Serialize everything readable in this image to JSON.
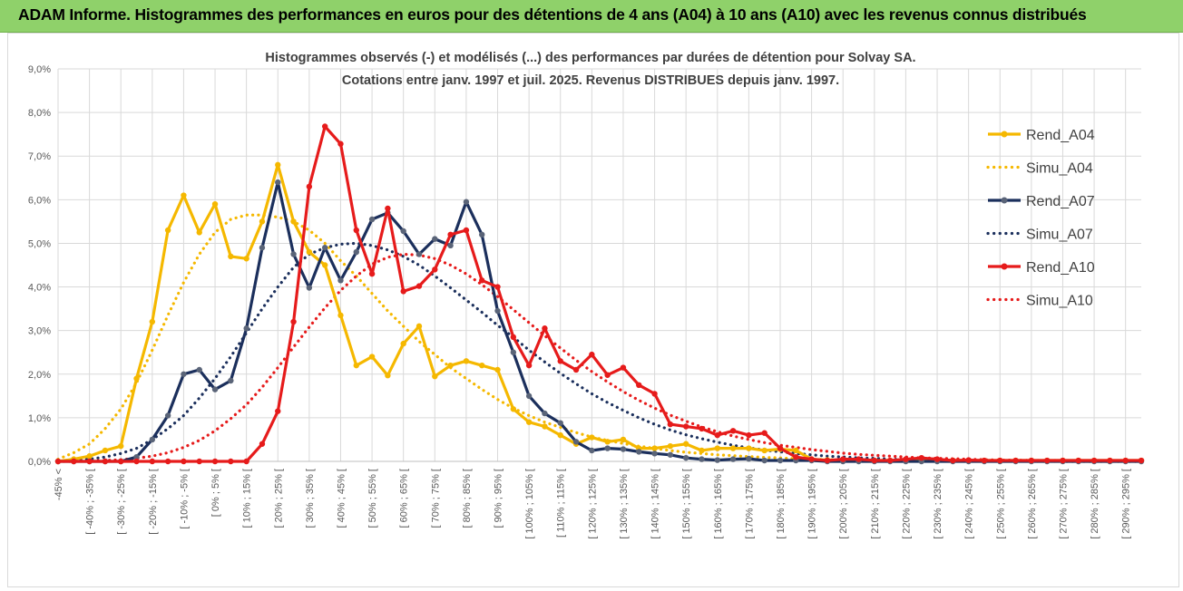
{
  "banner": {
    "title": "ADAM Informe. Histogrammes des performances en euros pour des détentions de 4 ans (A04) à 10 ans (A10) avec les revenus connus distribués"
  },
  "colors": {
    "a04": "#f5b800",
    "a07": "#1b2f5c",
    "a07_marker": "#5a6478",
    "a10": "#e61b1b",
    "grid": "#d9d9d9",
    "banner": "#8fd16a"
  },
  "chart_data": {
    "type": "line",
    "title": "Histogrammes observés (-) et modélisés (...) des performances par durées de détention pour Solvay SA.",
    "subtitle": "Cotations entre janv. 1997 et juil. 2025. Revenus DISTRIBUES depuis janv. 1997.",
    "xlabel": "",
    "ylabel": "",
    "ylim": [
      0,
      9
    ],
    "yticks": [
      "0,0%",
      "1,0%",
      "2,0%",
      "3,0%",
      "4,0%",
      "5,0%",
      "6,0%",
      "7,0%",
      "8,0%",
      "9,0%"
    ],
    "grid": true,
    "legend_position": "right",
    "categories": [
      "-45% <",
      "[ -45% ; -40% [",
      "[ -40% ; -35% [",
      "[ -35% ; -30% [",
      "[ -30% ; -25% [",
      "[ -25% ; -20% [",
      "[ -20% ; -15% [",
      "[ -15% ; -10% [",
      "[ -10% ; -5% [",
      "[ -5% ; 0% [",
      "[ 0% ; 5% [",
      "[ 5% ; 10% [",
      "[ 10% ; 15% [",
      "[ 15% ; 20% [",
      "[ 20% ; 25% [",
      "[ 25% ; 30% [",
      "[ 30% ; 35% [",
      "[ 35% ; 40% [",
      "[ 40% ; 45% [",
      "[ 45% ; 50% [",
      "[ 50% ; 55% [",
      "[ 55% ; 60% [",
      "[ 60% ; 65% [",
      "[ 65% ; 70% [",
      "[ 70% ; 75% [",
      "[ 75% ; 80% [",
      "[ 80% ; 85% [",
      "[ 85% ; 90% [",
      "[ 90% ; 95% [",
      "[ 95% ; 100% [",
      "[ 100% ; 105% [",
      "[ 105% ; 110% [",
      "[ 110% ; 115% [",
      "[ 115% ; 120% [",
      "[ 120% ; 125% [",
      "[ 125% ; 130% [",
      "[ 130% ; 135% [",
      "[ 135% ; 140% [",
      "[ 140% ; 145% [",
      "[ 145% ; 150% [",
      "[ 150% ; 155% [",
      "[ 155% ; 160% [",
      "[ 160% ; 165% [",
      "[ 165% ; 170% [",
      "[ 170% ; 175% [",
      "[ 175% ; 180% [",
      "[ 180% ; 185% [",
      "[ 185% ; 190% [",
      "[ 190% ; 195% [",
      "[ 195% ; 200% [",
      "[ 200% ; 205% [",
      "[ 205% ; 210% [",
      "[ 210% ; 215% [",
      "[ 215% ; 220% [",
      "[ 220% ; 225% [",
      "[ 225% ; 230% [",
      "[ 230% ; 235% [",
      "[ 235% ; 240% [",
      "[ 240% ; 245% [",
      "[ 245% ; 250% [",
      "[ 250% ; 255% [",
      "[ 255% ; 260% [",
      "[ 260% ; 265% [",
      "[ 265% ; 270% [",
      "[ 270% ; 275% [",
      "[ 275% ; 280% [",
      "[ 280% ; 285% [",
      "[ 285% ; 290% [",
      "[ 290% ; 295% [",
      "[ 295% ; 300% ["
    ],
    "tick_labels": [
      "-45% <",
      "",
      "[ -40% ; -35% [",
      "",
      "[ -30% ; -25% [",
      "",
      "[ -20% ; -15% [",
      "",
      "[ -10% ; -5% [",
      "",
      "[ 0% ; 5% [",
      "",
      "[ 10% ; 15% [",
      "",
      "[ 20% ; 25% [",
      "",
      "[ 30% ; 35% [",
      "",
      "[ 40% ; 45% [",
      "",
      "[ 50% ; 55% [",
      "",
      "[ 60% ; 65% [",
      "",
      "[ 70% ; 75% [",
      "",
      "[ 80% ; 85% [",
      "",
      "[ 90% ; 95% [",
      "",
      "[ 100% ; 105% [",
      "",
      "[ 110% ; 115% [",
      "",
      "[ 120% ; 125% [",
      "",
      "[ 130% ; 135% [",
      "",
      "[ 140% ; 145% [",
      "",
      "[ 150% ; 155% [",
      "",
      "[ 160% ; 165% [",
      "",
      "[ 170% ; 175% [",
      "",
      "[ 180% ; 185% [",
      "",
      "[ 190% ; 195% [",
      "",
      "[ 200% ; 205% [",
      "",
      "[ 210% ; 215% [",
      "",
      "[ 220% ; 225% [",
      "",
      "[ 230% ; 235% [",
      "",
      "[ 240% ; 245% [",
      "",
      "[ 250% ; 255% [",
      "",
      "[ 260% ; 265% [",
      "",
      "[ 270% ; 275% [",
      "",
      "[ 280% ; 285% [",
      "",
      "[ 290% ; 295% [",
      ""
    ],
    "series": [
      {
        "name": "Rend_A04",
        "style": "solid",
        "color": "#f5b800",
        "values": [
          0,
          0.05,
          0.12,
          0.25,
          0.35,
          1.9,
          3.2,
          5.3,
          6.1,
          5.25,
          5.9,
          4.7,
          4.65,
          5.5,
          6.8,
          5.5,
          4.8,
          4.5,
          3.35,
          2.2,
          2.4,
          1.97,
          2.7,
          3.1,
          1.95,
          2.2,
          2.3,
          2.2,
          2.1,
          1.2,
          0.9,
          0.8,
          0.6,
          0.4,
          0.55,
          0.45,
          0.5,
          0.3,
          0.3,
          0.35,
          0.4,
          0.25,
          0.3,
          0.3,
          0.3,
          0.25,
          0.28,
          0.25,
          0.05,
          0.03,
          0.02,
          0.02,
          0.02,
          0.02,
          0.02,
          0.02,
          0.02,
          0.02,
          0.02,
          0.02,
          0.02,
          0.02,
          0.02,
          0.02,
          0.02,
          0.02,
          0.02,
          0.02,
          0.02,
          0.02
        ]
      },
      {
        "name": "Simu_A04",
        "style": "dotted",
        "color": "#f5b800",
        "values": [
          0.05,
          0.2,
          0.4,
          0.75,
          1.2,
          1.8,
          2.55,
          3.35,
          4.1,
          4.75,
          5.25,
          5.55,
          5.65,
          5.65,
          5.6,
          5.5,
          5.3,
          5.0,
          4.6,
          4.25,
          3.85,
          3.45,
          3.1,
          2.75,
          2.45,
          2.15,
          1.9,
          1.65,
          1.42,
          1.22,
          1.05,
          0.9,
          0.78,
          0.66,
          0.56,
          0.48,
          0.41,
          0.35,
          0.3,
          0.25,
          0.21,
          0.18,
          0.15,
          0.13,
          0.11,
          0.09,
          0.08,
          0.06,
          0.05,
          0.04,
          0.04,
          0.03,
          0.03,
          0.02,
          0.02,
          0.02,
          0.01,
          0.01,
          0.01,
          0.01,
          0.01,
          0.01,
          0,
          0,
          0,
          0,
          0,
          0,
          0,
          0
        ]
      },
      {
        "name": "Rend_A07",
        "style": "solid",
        "color": "#1b2f5c",
        "values": [
          0,
          0,
          0,
          0,
          0,
          0.1,
          0.5,
          1.05,
          2.0,
          2.1,
          1.65,
          1.85,
          3.05,
          4.9,
          6.4,
          4.75,
          3.98,
          4.9,
          4.15,
          4.8,
          5.55,
          5.7,
          5.28,
          4.75,
          5.1,
          4.95,
          5.95,
          5.2,
          3.45,
          2.5,
          1.5,
          1.1,
          0.88,
          0.45,
          0.25,
          0.3,
          0.28,
          0.22,
          0.18,
          0.15,
          0.08,
          0.05,
          0.03,
          0.05,
          0.06,
          0.02,
          0.02,
          0.02,
          0.02,
          0,
          0,
          0,
          0,
          0,
          0,
          0,
          0,
          0,
          0,
          0,
          0,
          0,
          0,
          0,
          0,
          0,
          0,
          0,
          0,
          0
        ]
      },
      {
        "name": "Simu_A07",
        "style": "dotted",
        "color": "#1b2f5c",
        "values": [
          0,
          0.02,
          0.05,
          0.1,
          0.18,
          0.3,
          0.5,
          0.75,
          1.05,
          1.45,
          1.9,
          2.4,
          2.95,
          3.5,
          4.0,
          4.45,
          4.75,
          4.9,
          4.98,
          5.0,
          4.95,
          4.85,
          4.7,
          4.5,
          4.25,
          3.98,
          3.7,
          3.42,
          3.12,
          2.85,
          2.55,
          2.28,
          2.02,
          1.78,
          1.55,
          1.35,
          1.17,
          1.0,
          0.85,
          0.72,
          0.61,
          0.52,
          0.44,
          0.37,
          0.31,
          0.26,
          0.22,
          0.18,
          0.15,
          0.12,
          0.1,
          0.08,
          0.07,
          0.05,
          0.04,
          0.04,
          0.03,
          0.02,
          0.02,
          0.02,
          0.01,
          0.01,
          0.01,
          0.01,
          0,
          0,
          0,
          0,
          0,
          0
        ]
      },
      {
        "name": "Rend_A10",
        "style": "solid",
        "color": "#e61b1b",
        "values": [
          0,
          0,
          0,
          0,
          0,
          0,
          0,
          0,
          0,
          0,
          0,
          0,
          0,
          0.4,
          1.15,
          3.2,
          6.3,
          7.68,
          7.28,
          5.3,
          4.3,
          5.8,
          3.9,
          4.02,
          4.4,
          5.2,
          5.3,
          4.15,
          4.0,
          2.85,
          2.2,
          3.05,
          2.3,
          2.1,
          2.45,
          1.98,
          2.15,
          1.75,
          1.55,
          0.85,
          0.8,
          0.75,
          0.6,
          0.7,
          0.6,
          0.65,
          0.3,
          0.1,
          0.05,
          0.02,
          0.05,
          0.05,
          0.02,
          0.02,
          0.05,
          0.08,
          0.05,
          0.02,
          0.03,
          0.02,
          0.02,
          0.02,
          0.02,
          0.02,
          0.02,
          0.02,
          0.02,
          0.02,
          0.02,
          0.02
        ]
      },
      {
        "name": "Simu_A10",
        "style": "dotted",
        "color": "#e61b1b",
        "values": [
          0,
          0,
          0.01,
          0.02,
          0.04,
          0.07,
          0.12,
          0.2,
          0.32,
          0.48,
          0.7,
          0.98,
          1.3,
          1.7,
          2.15,
          2.62,
          3.08,
          3.52,
          3.92,
          4.25,
          4.52,
          4.68,
          4.75,
          4.73,
          4.65,
          4.5,
          4.3,
          4.05,
          3.78,
          3.48,
          3.18,
          2.88,
          2.6,
          2.32,
          2.06,
          1.82,
          1.6,
          1.4,
          1.22,
          1.06,
          0.92,
          0.79,
          0.68,
          0.58,
          0.5,
          0.43,
          0.37,
          0.32,
          0.27,
          0.23,
          0.19,
          0.16,
          0.14,
          0.12,
          0.1,
          0.08,
          0.07,
          0.06,
          0.05,
          0.04,
          0.03,
          0.03,
          0.02,
          0.02,
          0.02,
          0.01,
          0.01,
          0.01,
          0.01,
          0
        ]
      }
    ]
  }
}
